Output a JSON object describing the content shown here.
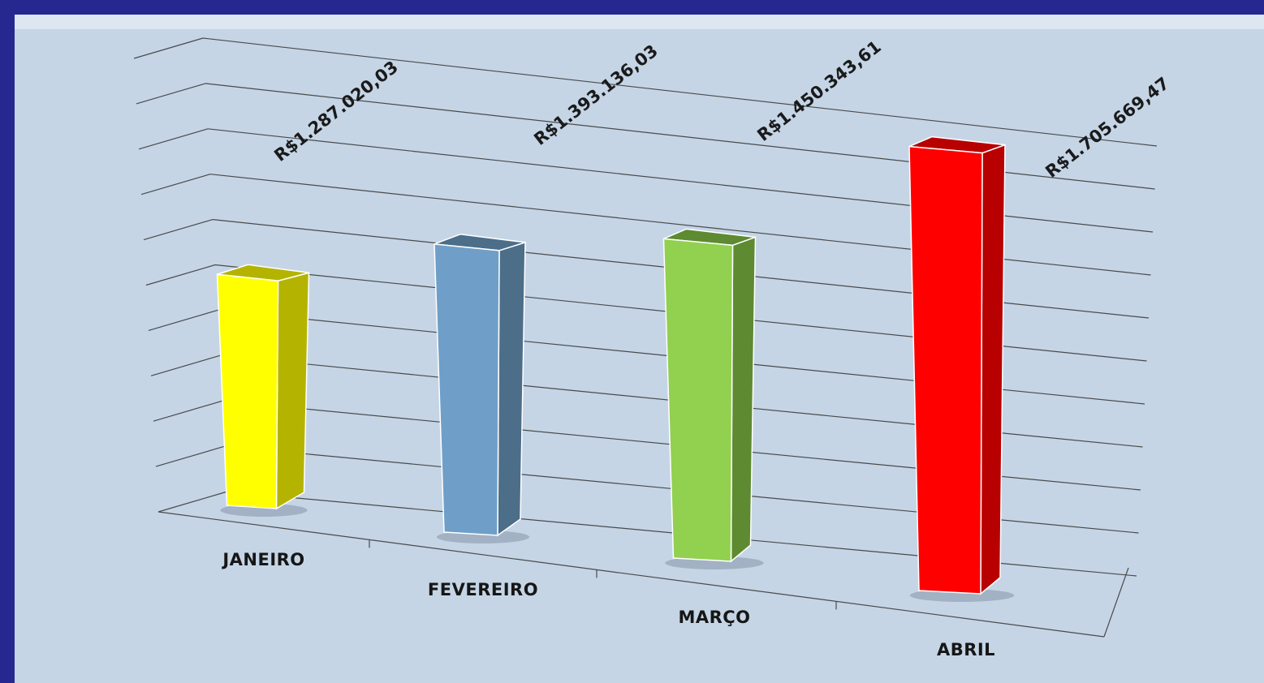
{
  "chart_data": {
    "type": "bar",
    "title": "",
    "xlabel": "",
    "ylabel": "",
    "categories": [
      "JANEIRO",
      "FEVEREIRO",
      "MARÇO",
      "ABRIL"
    ],
    "value_labels": [
      "R$1.287.020,03",
      "R$1.393.136,03",
      "R$1.450.343,61",
      "R$1.705.669,47"
    ],
    "values": [
      1287020.03,
      1393136.03,
      1450343.61,
      1705669.47
    ],
    "colors": [
      "#ffff00",
      "#6f9fc8",
      "#92d050",
      "#ff0000"
    ],
    "side_colors": [
      "#b4b400",
      "#4c6e89",
      "#5e8a32",
      "#b80000"
    ],
    "ylim": [
      0,
      2000000
    ],
    "grid": true,
    "legend": "none",
    "style": "3d-column"
  },
  "theme": {
    "frame_color": "#27288f",
    "plot_background": "#c5d5e6",
    "gridline_color": "#4a4a4a"
  }
}
